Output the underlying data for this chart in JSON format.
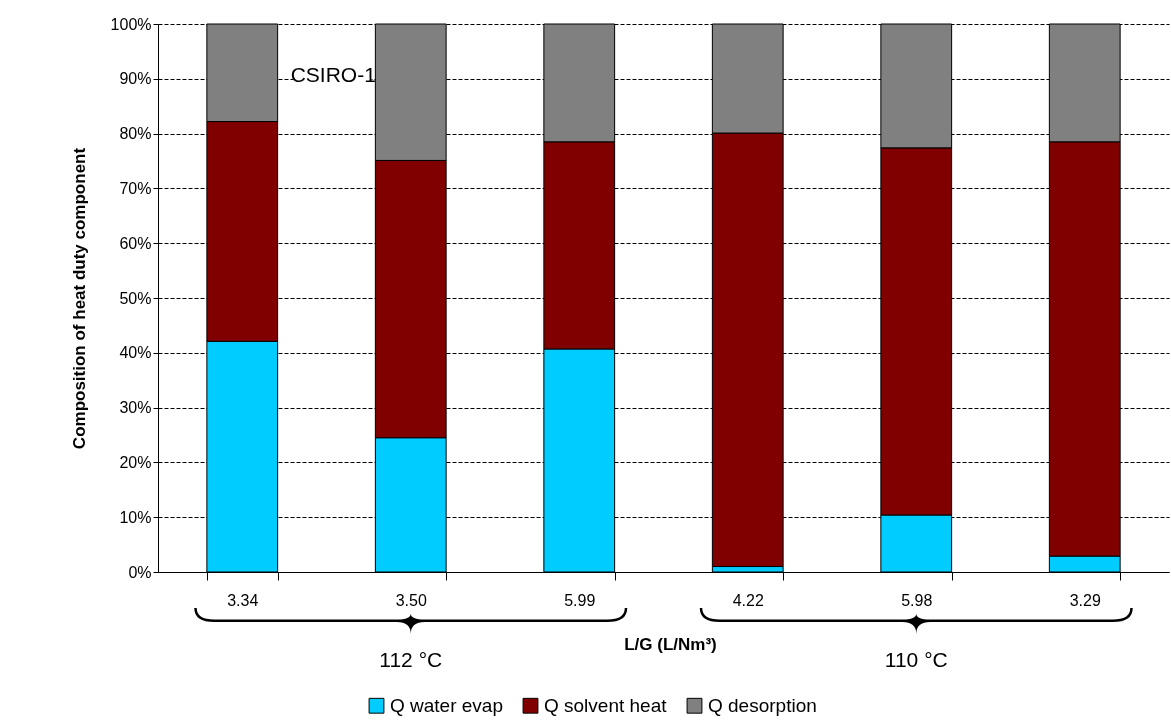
{
  "chart_data": {
    "type": "bar",
    "stacked": true,
    "ylabel": "Composition of heat duty component",
    "xlabel": "L/G (L/Nm³)",
    "categories": [
      "3.34",
      "3.50",
      "5.99",
      "4.22",
      "5.98",
      "3.29"
    ],
    "series": [
      {
        "name": "Q water evap",
        "color": "#00ccff",
        "values": [
          42.1,
          24.5,
          40.7,
          1.0,
          10.4,
          2.9
        ]
      },
      {
        "name": "Q solvent heat",
        "color": "#800000",
        "values": [
          40.1,
          50.6,
          37.8,
          79.1,
          67.0,
          75.6
        ]
      },
      {
        "name": "Q desorption",
        "color": "#808080",
        "values": [
          17.8,
          24.9,
          21.5,
          19.9,
          22.6,
          21.5
        ]
      }
    ],
    "ylim": [
      0,
      100
    ],
    "yticks": [
      {
        "value": 0,
        "label": "0%"
      },
      {
        "value": 10,
        "label": "10%"
      },
      {
        "value": 20,
        "label": "20%"
      },
      {
        "value": 30,
        "label": "30%"
      },
      {
        "value": 40,
        "label": "40%"
      },
      {
        "value": 50,
        "label": "50%"
      },
      {
        "value": 60,
        "label": "60%"
      },
      {
        "value": 70,
        "label": "70%"
      },
      {
        "value": 80,
        "label": "80%"
      },
      {
        "value": 90,
        "label": "90%"
      },
      {
        "value": 100,
        "label": "100%"
      }
    ],
    "grid": "y",
    "legend": "bottom",
    "annotations": [
      "CSIRO-1",
      "112 °C",
      "110 °C"
    ]
  }
}
